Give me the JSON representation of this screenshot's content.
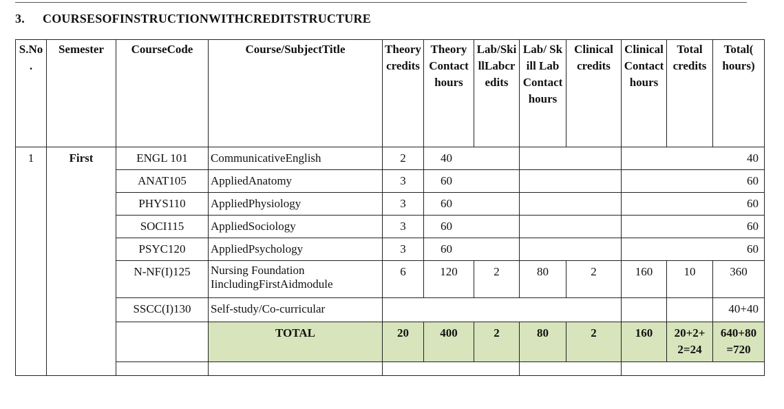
{
  "section": {
    "number": "3.",
    "title": "COURSESOFINSTRUCTIONWITHCREDITSTRUCTURE"
  },
  "headers": {
    "sno": "S.No .",
    "semester": "Semester",
    "code": "CourseCode",
    "title": "Course/SubjectTitle",
    "theory_credits": "Theory credits",
    "theory_hours": "Theory Contacthours",
    "lab_credits": "Lab/SkillLabcredits",
    "lab_hours": "Lab/ Skill Lab Contacthours",
    "clinical_credits": "Clinical credits",
    "clinical_hours": "Clinical Contacthours",
    "total_credits": "Total credits",
    "total_hours": "Total( hours)"
  },
  "sno": "1",
  "semester": "First",
  "rows": [
    {
      "code": "ENGL 101",
      "title": "CommunicativeEnglish",
      "theory_credits": "2",
      "theory_hours": "40",
      "total_hours": "40"
    },
    {
      "code": "ANAT105",
      "title": "AppliedAnatomy",
      "theory_credits": "3",
      "theory_hours": "60",
      "total_hours": "60"
    },
    {
      "code": "PHYS110",
      "title": "AppliedPhysiology",
      "theory_credits": "3",
      "theory_hours": "60",
      "total_hours": "60"
    },
    {
      "code": "SOCI115",
      "title": "AppliedSociology",
      "theory_credits": "3",
      "theory_hours": "60",
      "total_hours": "60"
    },
    {
      "code": "PSYC120",
      "title": "AppliedPsychology",
      "theory_credits": "3",
      "theory_hours": "60",
      "total_hours": "60"
    },
    {
      "code": "N-NF(I)125",
      "title": "Nursing Foundation",
      "title2": "IincludingFirstAidmodule",
      "theory_credits": "6",
      "theory_hours": "120",
      "lab_credits": "2",
      "lab_hours": "80",
      "clinical_credits": "2",
      "clinical_hours": "160",
      "total_credits": "10",
      "total_hours": "360"
    },
    {
      "code": "SSCC(I)130",
      "title": "Self-study/Co-curricular",
      "total_hours": "40+40"
    }
  ],
  "total": {
    "label": "TOTAL",
    "theory_credits": "20",
    "theory_hours": "400",
    "lab_credits": "2",
    "lab_hours": "80",
    "clinical_credits": "2",
    "clinical_hours": "160",
    "total_credits_1": "20+2+",
    "total_credits_2": "2=24",
    "total_hours_1": "640+80",
    "total_hours_2": "=720"
  },
  "colors": {
    "total_row_bg": "#d7e4bc"
  }
}
